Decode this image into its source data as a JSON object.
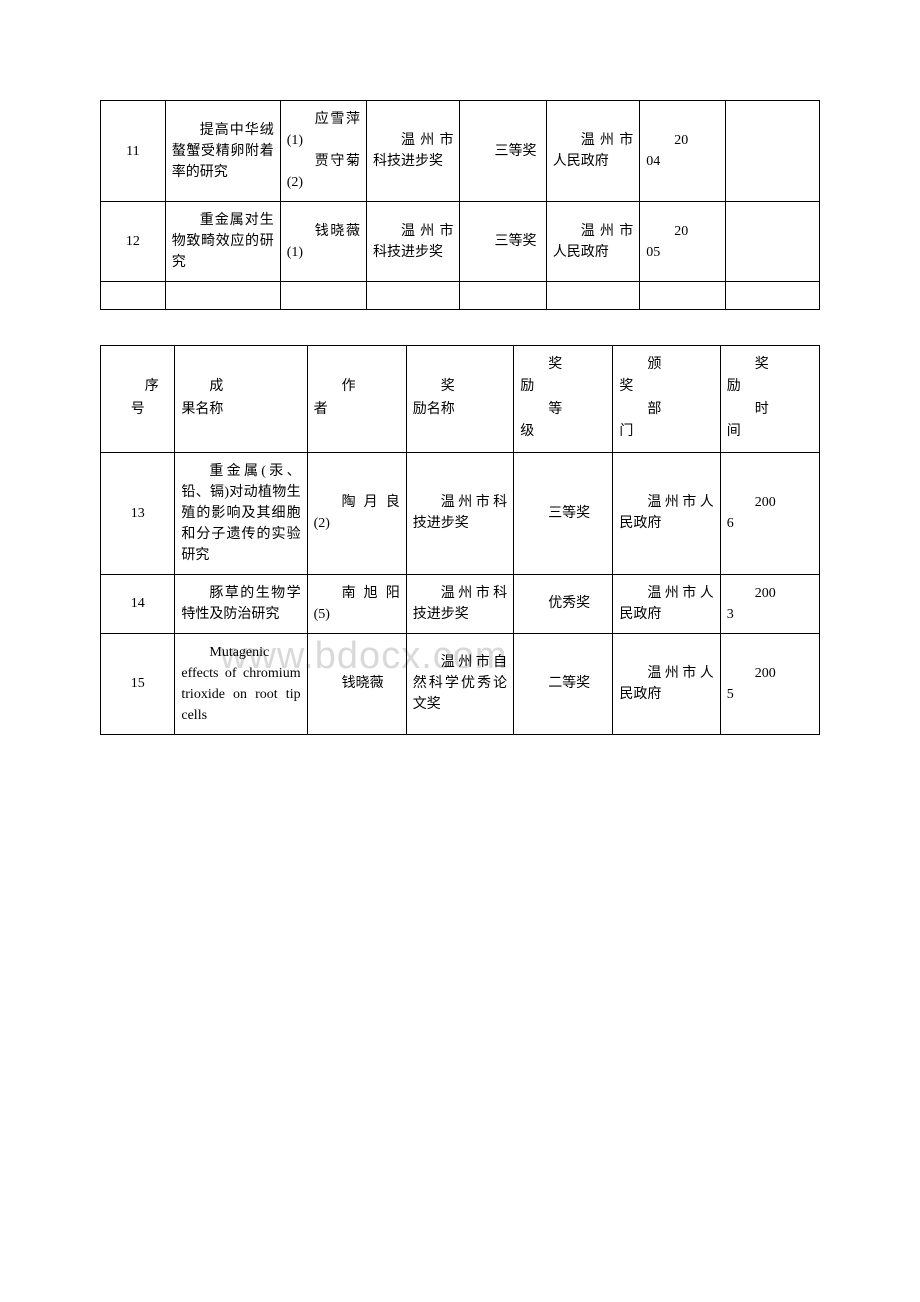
{
  "watermark": "www.bdocx.com",
  "table1": {
    "rows": [
      {
        "num": "11",
        "name": "提高中华绒螯蟹受精卵附着率的研究",
        "author": "应雪萍(1)\n贾守菊(2)",
        "author_parts": [
          "应雪萍(1)",
          "贾守菊(2)"
        ],
        "award": "温州市科技进步奖",
        "level": "三等奖",
        "dept": "温州市人民政府",
        "time": "2004",
        "time_parts": [
          "20",
          "04"
        ]
      },
      {
        "num": "12",
        "name": "重金属对生物致畸效应的研究",
        "author": "钱晓薇(1)",
        "author_parts": [
          "钱晓薇(1)"
        ],
        "award": "温州市科技进步奖",
        "level": "三等奖",
        "dept": "温州市人民政府",
        "time": "2005",
        "time_parts": [
          "20",
          "05"
        ]
      }
    ]
  },
  "table2": {
    "headers": {
      "num": "序号",
      "num_parts": [
        "序",
        "号"
      ],
      "name": "成果名称",
      "name_parts": [
        "成",
        "果名称"
      ],
      "author": "作者",
      "author_parts": [
        "作",
        "者"
      ],
      "award": "奖励名称",
      "award_parts": [
        "奖",
        "励名称"
      ],
      "level": "奖励等级",
      "level_parts": [
        "奖",
        "励",
        "等",
        "级"
      ],
      "dept": "颁奖部门",
      "dept_parts": [
        "颁",
        "奖",
        "部",
        "门"
      ],
      "time": "奖励时间",
      "time_parts": [
        "奖",
        "励",
        "时",
        "间"
      ]
    },
    "rows": [
      {
        "num": "13",
        "name": "重金属(汞、铅、镉)对动植物生殖的影响及其细胞和分子遗传的实验研究",
        "author": "陶月良(2)",
        "award": "温州市科技进步奖",
        "level": "三等奖",
        "dept": "温州市人民政府",
        "time": "2006",
        "time_parts": [
          "200",
          "6"
        ]
      },
      {
        "num": "14",
        "name": "豚草的生物学特性及防治研究",
        "author": "南旭阳(5)",
        "award": "温州市科技进步奖",
        "level": "优秀奖",
        "dept": "温州市人民政府",
        "time": "2003",
        "time_parts": [
          "200",
          "3"
        ]
      },
      {
        "num": "15",
        "name": "Mutagenic effects of chromium trioxide on root tip cells",
        "author": "钱晓薇",
        "award": "温州市自然科学优秀论文奖",
        "level": "二等奖",
        "dept": "温州市人民政府",
        "time": "2005",
        "time_parts": [
          "200",
          "5"
        ]
      }
    ]
  },
  "styles": {
    "border_color": "#000000",
    "background_color": "#ffffff",
    "text_color": "#000000",
    "watermark_color": "#d9d9d9",
    "font_size_base": 14,
    "font_size_watermark": 38
  }
}
